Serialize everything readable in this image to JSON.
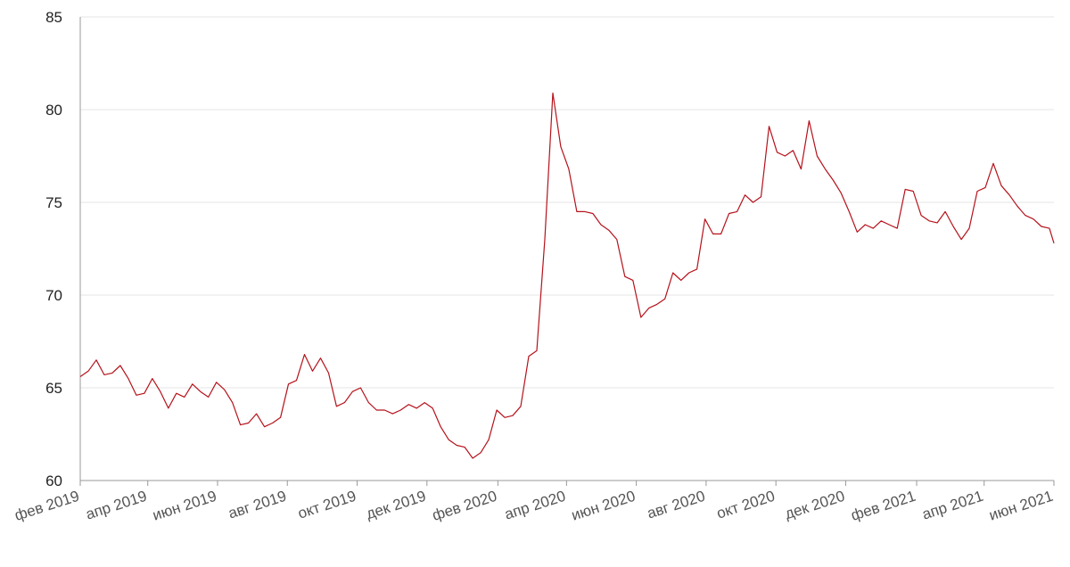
{
  "chart_data": {
    "type": "line",
    "title": "",
    "xlabel": "",
    "ylabel": "",
    "ylim": [
      60,
      85
    ],
    "xlim": [
      "2019-02-01",
      "2021-06-01"
    ],
    "y_ticks": [
      60,
      65,
      70,
      75,
      80,
      85
    ],
    "x_tick_dates": [
      "2019-02-01",
      "2019-04-01",
      "2019-06-01",
      "2019-08-01",
      "2019-10-01",
      "2019-12-01",
      "2020-02-01",
      "2020-04-01",
      "2020-06-01",
      "2020-08-01",
      "2020-10-01",
      "2020-12-01",
      "2021-02-01",
      "2021-04-01",
      "2021-06-01"
    ],
    "x_tick_labels": [
      "фев 2019",
      "апр 2019",
      "июн 2019",
      "авг 2019",
      "окт 2019",
      "дек 2019",
      "фев 2020",
      "апр 2020",
      "июн 2020",
      "авг 2020",
      "окт 2020",
      "дек 2020",
      "фев 2021",
      "апр 2021",
      "июн 2021"
    ],
    "grid": "horizontal",
    "series_color": "#b5121b",
    "series": [
      {
        "points": [
          [
            "2019-02-01",
            65.6
          ],
          [
            "2019-02-08",
            65.9
          ],
          [
            "2019-02-15",
            66.5
          ],
          [
            "2019-02-22",
            65.7
          ],
          [
            "2019-03-01",
            65.8
          ],
          [
            "2019-03-08",
            66.2
          ],
          [
            "2019-03-15",
            65.5
          ],
          [
            "2019-03-22",
            64.6
          ],
          [
            "2019-03-29",
            64.7
          ],
          [
            "2019-04-05",
            65.5
          ],
          [
            "2019-04-12",
            64.8
          ],
          [
            "2019-04-19",
            63.9
          ],
          [
            "2019-04-26",
            64.7
          ],
          [
            "2019-05-03",
            64.5
          ],
          [
            "2019-05-10",
            65.2
          ],
          [
            "2019-05-17",
            64.8
          ],
          [
            "2019-05-24",
            64.5
          ],
          [
            "2019-05-31",
            65.3
          ],
          [
            "2019-06-07",
            64.9
          ],
          [
            "2019-06-14",
            64.2
          ],
          [
            "2019-06-21",
            63.0
          ],
          [
            "2019-06-28",
            63.1
          ],
          [
            "2019-07-05",
            63.6
          ],
          [
            "2019-07-12",
            62.9
          ],
          [
            "2019-07-19",
            63.1
          ],
          [
            "2019-07-26",
            63.4
          ],
          [
            "2019-08-02",
            65.2
          ],
          [
            "2019-08-09",
            65.4
          ],
          [
            "2019-08-16",
            66.8
          ],
          [
            "2019-08-23",
            65.9
          ],
          [
            "2019-08-30",
            66.6
          ],
          [
            "2019-09-06",
            65.8
          ],
          [
            "2019-09-13",
            64.0
          ],
          [
            "2019-09-20",
            64.2
          ],
          [
            "2019-09-27",
            64.8
          ],
          [
            "2019-10-04",
            65.0
          ],
          [
            "2019-10-11",
            64.2
          ],
          [
            "2019-10-18",
            63.8
          ],
          [
            "2019-10-25",
            63.8
          ],
          [
            "2019-11-01",
            63.6
          ],
          [
            "2019-11-08",
            63.8
          ],
          [
            "2019-11-15",
            64.1
          ],
          [
            "2019-11-22",
            63.9
          ],
          [
            "2019-11-29",
            64.2
          ],
          [
            "2019-12-06",
            63.9
          ],
          [
            "2019-12-13",
            62.9
          ],
          [
            "2019-12-20",
            62.2
          ],
          [
            "2019-12-27",
            61.9
          ],
          [
            "2020-01-03",
            61.8
          ],
          [
            "2020-01-10",
            61.2
          ],
          [
            "2020-01-17",
            61.5
          ],
          [
            "2020-01-24",
            62.2
          ],
          [
            "2020-01-31",
            63.8
          ],
          [
            "2020-02-07",
            63.4
          ],
          [
            "2020-02-14",
            63.5
          ],
          [
            "2020-02-21",
            64.0
          ],
          [
            "2020-02-28",
            66.7
          ],
          [
            "2020-03-06",
            67.0
          ],
          [
            "2020-03-13",
            73.0
          ],
          [
            "2020-03-20",
            80.9
          ],
          [
            "2020-03-27",
            78.0
          ],
          [
            "2020-04-03",
            76.8
          ],
          [
            "2020-04-10",
            74.5
          ],
          [
            "2020-04-17",
            74.5
          ],
          [
            "2020-04-24",
            74.4
          ],
          [
            "2020-05-01",
            73.8
          ],
          [
            "2020-05-08",
            73.5
          ],
          [
            "2020-05-15",
            73.0
          ],
          [
            "2020-05-22",
            71.0
          ],
          [
            "2020-05-29",
            70.8
          ],
          [
            "2020-06-05",
            68.8
          ],
          [
            "2020-06-12",
            69.3
          ],
          [
            "2020-06-19",
            69.5
          ],
          [
            "2020-06-26",
            69.8
          ],
          [
            "2020-07-03",
            71.2
          ],
          [
            "2020-07-10",
            70.8
          ],
          [
            "2020-07-17",
            71.2
          ],
          [
            "2020-07-24",
            71.4
          ],
          [
            "2020-07-31",
            74.1
          ],
          [
            "2020-08-07",
            73.3
          ],
          [
            "2020-08-14",
            73.3
          ],
          [
            "2020-08-21",
            74.4
          ],
          [
            "2020-08-28",
            74.5
          ],
          [
            "2020-09-04",
            75.4
          ],
          [
            "2020-09-11",
            75.0
          ],
          [
            "2020-09-18",
            75.3
          ],
          [
            "2020-09-25",
            79.1
          ],
          [
            "2020-10-02",
            77.7
          ],
          [
            "2020-10-09",
            77.5
          ],
          [
            "2020-10-16",
            77.8
          ],
          [
            "2020-10-23",
            76.8
          ],
          [
            "2020-10-30",
            79.4
          ],
          [
            "2020-11-06",
            77.5
          ],
          [
            "2020-11-13",
            76.8
          ],
          [
            "2020-11-20",
            76.2
          ],
          [
            "2020-11-27",
            75.5
          ],
          [
            "2020-12-04",
            74.5
          ],
          [
            "2020-12-11",
            73.4
          ],
          [
            "2020-12-18",
            73.8
          ],
          [
            "2020-12-25",
            73.6
          ],
          [
            "2021-01-01",
            74.0
          ],
          [
            "2021-01-08",
            73.8
          ],
          [
            "2021-01-15",
            73.6
          ],
          [
            "2021-01-22",
            75.7
          ],
          [
            "2021-01-29",
            75.6
          ],
          [
            "2021-02-05",
            74.3
          ],
          [
            "2021-02-12",
            74.0
          ],
          [
            "2021-02-19",
            73.9
          ],
          [
            "2021-02-26",
            74.5
          ],
          [
            "2021-03-05",
            73.7
          ],
          [
            "2021-03-12",
            73.0
          ],
          [
            "2021-03-19",
            73.6
          ],
          [
            "2021-03-26",
            75.6
          ],
          [
            "2021-04-02",
            75.8
          ],
          [
            "2021-04-09",
            77.1
          ],
          [
            "2021-04-16",
            75.9
          ],
          [
            "2021-04-23",
            75.4
          ],
          [
            "2021-04-30",
            74.8
          ],
          [
            "2021-05-07",
            74.3
          ],
          [
            "2021-05-14",
            74.1
          ],
          [
            "2021-05-21",
            73.7
          ],
          [
            "2021-05-28",
            73.6
          ],
          [
            "2021-06-01",
            72.8
          ]
        ]
      }
    ]
  }
}
